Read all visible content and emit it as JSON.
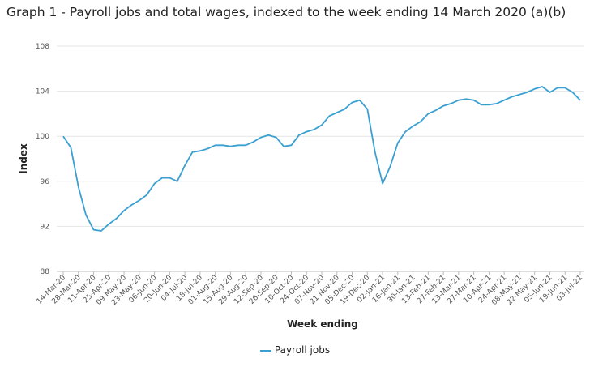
{
  "title": "Graph 1 - Payroll jobs and total wages, indexed to the week ending 14 March 2020 (a)(b)",
  "colors": {
    "series": "#3aa0d2",
    "grid": "#e6e6e6",
    "axis": "#bbbbbb"
  },
  "chart_data": {
    "type": "line",
    "xlabel": "Week ending",
    "ylabel": "Index",
    "ylim": [
      88,
      108
    ],
    "yticks": [
      88,
      92,
      96,
      100,
      104,
      108
    ],
    "grid": true,
    "legend": "bottom",
    "x_tick_labels": [
      "14-Mar-20",
      "28-Mar-20",
      "11-Apr-20",
      "25-Apr-20",
      "09-May-20",
      "23-May-20",
      "06-Jun-20",
      "20-Jun-20",
      "04-Jul-20",
      "18-Jul-20",
      "01-Aug-20",
      "15-Aug-20",
      "29-Aug-20",
      "12-Sep-20",
      "26-Sep-20",
      "10-Oct-20",
      "24-Oct-20",
      "07-Nov-20",
      "21-Nov-20",
      "05-Dec-20",
      "19-Dec-20",
      "02-Jan-21",
      "16-Jan-21",
      "30-Jan-21",
      "13-Feb-21",
      "27-Feb-21",
      "13-Mar-21",
      "27-Mar-21",
      "10-Apr-21",
      "24-Apr-21",
      "08-May-21",
      "22-May-21",
      "05-Jun-21",
      "19-Jun-21",
      "03-Jul-21"
    ],
    "series": [
      {
        "name": "Payroll jobs",
        "values": [
          100.0,
          99.0,
          95.5,
          93.0,
          91.7,
          91.6,
          92.2,
          92.7,
          93.4,
          93.9,
          94.3,
          94.8,
          95.8,
          96.3,
          96.3,
          96.0,
          97.4,
          98.6,
          98.7,
          98.9,
          99.2,
          99.2,
          99.1,
          99.2,
          99.2,
          99.5,
          99.9,
          100.1,
          99.9,
          99.1,
          99.2,
          100.1,
          100.4,
          100.6,
          101.0,
          101.8,
          102.1,
          102.4,
          103.0,
          103.2,
          102.4,
          98.6,
          95.8,
          97.3,
          99.4,
          100.4,
          100.9,
          101.3,
          102.0,
          102.3,
          102.7,
          102.9,
          103.2,
          103.3,
          103.2,
          102.8,
          102.8,
          102.9,
          103.2,
          103.5,
          103.7,
          103.9,
          104.2,
          104.4,
          103.9,
          104.3,
          104.3,
          103.9,
          103.2
        ]
      }
    ]
  }
}
